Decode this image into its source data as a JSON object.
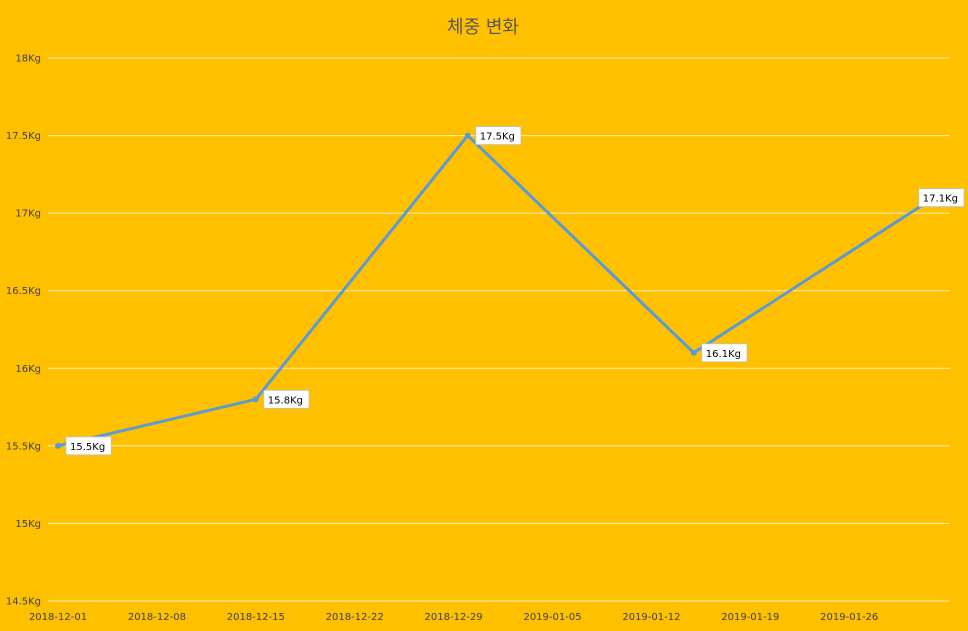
{
  "chart_data": {
    "type": "line",
    "title": "체중 변화",
    "xlabel": "",
    "ylabel": "",
    "x_tick_labels": [
      "2018-12-01",
      "2018-12-08",
      "2018-12-15",
      "2018-12-22",
      "2018-12-29",
      "2019-01-05",
      "2019-01-12",
      "2019-01-19",
      "2019-01-26"
    ],
    "y_tick_labels": [
      "14.5Kg",
      "15Kg",
      "15.5Kg",
      "16Kg",
      "16.5Kg",
      "17Kg",
      "17.5Kg",
      "18Kg"
    ],
    "ylim": [
      14.5,
      18
    ],
    "xlim": [
      "2018-12-01",
      "2019-02-01"
    ],
    "grid": true,
    "series": [
      {
        "x": [
          "2018-12-01",
          "2018-12-15",
          "2018-12-30",
          "2019-01-15",
          "2019-02-01"
        ],
        "values": [
          15.5,
          15.8,
          17.5,
          16.1,
          17.1
        ],
        "data_labels": [
          "15.5Kg",
          "15.8Kg",
          "17.5Kg",
          "16.1Kg",
          "17.1Kg"
        ],
        "color": "#5B9BD5"
      }
    ]
  },
  "colors": {
    "background": "#FFC000",
    "line": "#5B9BD5",
    "gridline": "#FFFFFF"
  }
}
